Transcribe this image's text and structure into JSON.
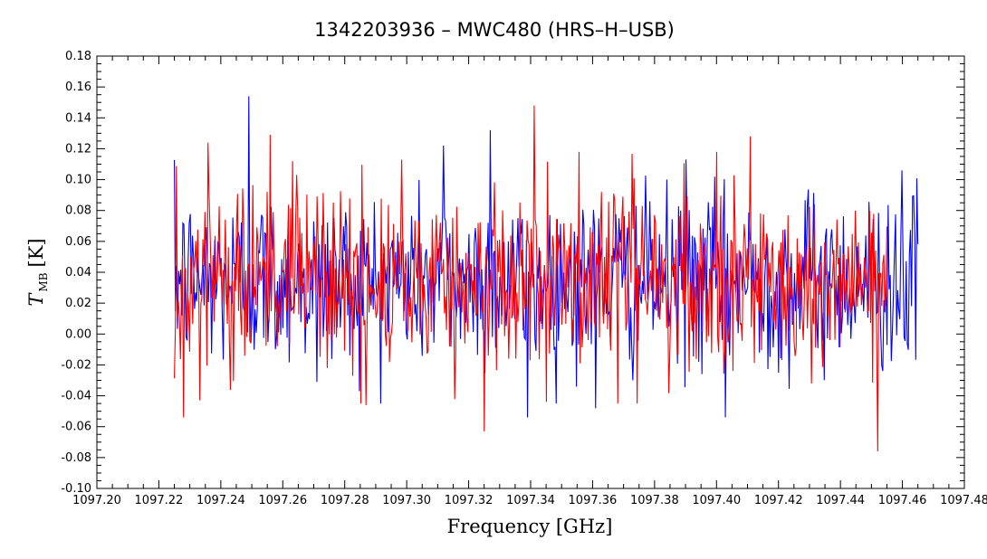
{
  "chart_data": {
    "type": "line",
    "title": "1342203936 – MWC480 (HRS–H–USB)",
    "xlabel": "Frequency [GHz]",
    "ylabel_symbol": "T",
    "ylabel_subscript": "MB",
    "ylabel_unit": "[K]",
    "xlim": [
      1097.2,
      1097.48
    ],
    "ylim": [
      -0.1,
      0.18
    ],
    "x_ticks": [
      "1097.20",
      "1097.22",
      "1097.24",
      "1097.26",
      "1097.28",
      "1097.30",
      "1097.32",
      "1097.34",
      "1097.36",
      "1097.38",
      "1097.40",
      "1097.42",
      "1097.44",
      "1097.46",
      "1097.48"
    ],
    "x_tick_values": [
      1097.2,
      1097.22,
      1097.24,
      1097.26,
      1097.28,
      1097.3,
      1097.32,
      1097.34,
      1097.36,
      1097.38,
      1097.4,
      1097.42,
      1097.44,
      1097.46,
      1097.48
    ],
    "y_ticks": [
      "-0.10",
      "-0.08",
      "-0.06",
      "-0.04",
      "-0.02",
      "0.00",
      "0.02",
      "0.04",
      "0.06",
      "0.08",
      "0.10",
      "0.12",
      "0.14",
      "0.16",
      "0.18"
    ],
    "y_tick_values": [
      -0.1,
      -0.08,
      -0.06,
      -0.04,
      -0.02,
      0.0,
      0.02,
      0.04,
      0.06,
      0.08,
      0.1,
      0.12,
      0.14,
      0.16,
      0.18
    ],
    "series": [
      {
        "color": "#0000ff",
        "x_start": 1097.225,
        "x_end": 1097.465,
        "points": 700,
        "baseline": 0.035,
        "noise_sigma": 0.028,
        "peaks": [
          {
            "x": 1097.249,
            "y": 0.154
          },
          {
            "x": 1097.327,
            "y": 0.132
          },
          {
            "x": 1097.312,
            "y": 0.122
          },
          {
            "x": 1097.39,
            "y": 0.113
          },
          {
            "x": 1097.46,
            "y": 0.106
          },
          {
            "x": 1097.403,
            "y": -0.054
          },
          {
            "x": 1097.339,
            "y": -0.054
          },
          {
            "x": 1097.361,
            "y": -0.048
          },
          {
            "x": 1097.271,
            "y": -0.031
          }
        ]
      },
      {
        "color": "#ff0000",
        "x_start": 1097.225,
        "x_end": 1097.455,
        "points": 700,
        "baseline": 0.035,
        "noise_sigma": 0.028,
        "peaks": [
          {
            "x": 1097.341,
            "y": 0.148
          },
          {
            "x": 1097.256,
            "y": 0.129
          },
          {
            "x": 1097.411,
            "y": 0.128
          },
          {
            "x": 1097.236,
            "y": 0.124
          },
          {
            "x": 1097.228,
            "y": -0.054
          },
          {
            "x": 1097.325,
            "y": -0.063
          },
          {
            "x": 1097.452,
            "y": -0.076
          },
          {
            "x": 1097.287,
            "y": -0.046
          },
          {
            "x": 1097.345,
            "y": -0.044
          }
        ]
      }
    ]
  }
}
